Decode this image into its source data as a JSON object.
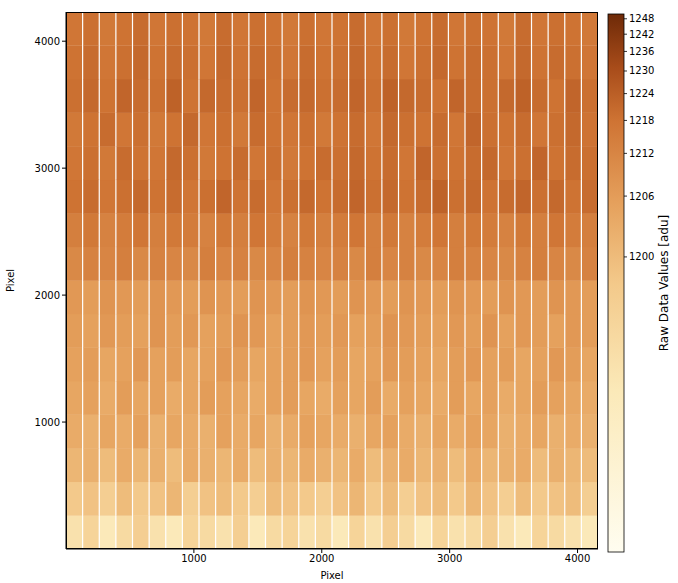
{
  "chart_data": {
    "type": "heatmap",
    "x_label": "Pixel",
    "y_label": "Pixel",
    "xlim": [
      0,
      4160
    ],
    "ylim": [
      0,
      4230
    ],
    "xticks": [
      1000,
      2000,
      3000,
      4000
    ],
    "yticks": [
      1000,
      2000,
      3000,
      4000
    ],
    "x": [
      65,
      195,
      325,
      455,
      585,
      715,
      845,
      975,
      1105,
      1235,
      1365,
      1495,
      1625,
      1755,
      1885,
      2015,
      2145,
      2275,
      2405,
      2535,
      2665,
      2795,
      2925,
      3055,
      3185,
      3315,
      3445,
      3575,
      3705,
      3835,
      3965,
      4095
    ],
    "y": [
      132,
      396,
      661,
      925,
      1190,
      1454,
      1718,
      1983,
      2247,
      2512,
      2776,
      3040,
      3305,
      3569,
      3833,
      4098
    ],
    "cells": [
      [
        1194,
        1196,
        1193,
        1195,
        1197,
        1194,
        1193,
        1196,
        1195,
        1194,
        1197,
        1193,
        1195,
        1196,
        1194,
        1195,
        1193,
        1196,
        1194,
        1197,
        1195,
        1193,
        1196,
        1194,
        1195,
        1197,
        1194,
        1193,
        1196,
        1195,
        1194,
        1193
      ],
      [
        1198,
        1199,
        1197,
        1200,
        1198,
        1199,
        1201,
        1197,
        1199,
        1200,
        1198,
        1197,
        1200,
        1199,
        1198,
        1197,
        1199,
        1201,
        1198,
        1200,
        1197,
        1199,
        1200,
        1198,
        1201,
        1199,
        1197,
        1200,
        1198,
        1199,
        1200,
        1197
      ],
      [
        1201,
        1202,
        1200,
        1203,
        1201,
        1202,
        1200,
        1203,
        1202,
        1201,
        1203,
        1200,
        1202,
        1201,
        1203,
        1202,
        1201,
        1203,
        1200,
        1202,
        1203,
        1201,
        1202,
        1200,
        1203,
        1201,
        1202,
        1203,
        1200,
        1202,
        1201,
        1200
      ],
      [
        1203,
        1202,
        1204,
        1203,
        1205,
        1202,
        1204,
        1203,
        1202,
        1205,
        1203,
        1204,
        1202,
        1203,
        1205,
        1204,
        1203,
        1202,
        1204,
        1205,
        1203,
        1202,
        1204,
        1203,
        1205,
        1204,
        1202,
        1203,
        1204,
        1202,
        1203,
        1202
      ],
      [
        1204,
        1205,
        1203,
        1206,
        1204,
        1205,
        1203,
        1204,
        1206,
        1205,
        1204,
        1203,
        1205,
        1206,
        1204,
        1203,
        1205,
        1204,
        1206,
        1203,
        1205,
        1204,
        1203,
        1206,
        1204,
        1205,
        1203,
        1204,
        1206,
        1205,
        1204,
        1203
      ],
      [
        1205,
        1206,
        1204,
        1205,
        1207,
        1205,
        1206,
        1204,
        1205,
        1207,
        1206,
        1204,
        1205,
        1206,
        1207,
        1205,
        1206,
        1204,
        1205,
        1207,
        1206,
        1205,
        1204,
        1206,
        1207,
        1205,
        1206,
        1204,
        1205,
        1207,
        1206,
        1204
      ],
      [
        1206,
        1205,
        1207,
        1206,
        1205,
        1208,
        1206,
        1207,
        1205,
        1206,
        1208,
        1207,
        1205,
        1206,
        1207,
        1206,
        1207,
        1205,
        1206,
        1208,
        1207,
        1206,
        1205,
        1207,
        1206,
        1208,
        1205,
        1207,
        1206,
        1205,
        1207,
        1206
      ],
      [
        1207,
        1206,
        1208,
        1207,
        1206,
        1208,
        1207,
        1206,
        1208,
        1207,
        1206,
        1208,
        1207,
        1206,
        1208,
        1207,
        1206,
        1208,
        1207,
        1206,
        1208,
        1207,
        1206,
        1208,
        1207,
        1206,
        1208,
        1207,
        1206,
        1208,
        1207,
        1206
      ],
      [
        1211,
        1213,
        1212,
        1214,
        1211,
        1213,
        1212,
        1211,
        1214,
        1212,
        1213,
        1211,
        1212,
        1214,
        1213,
        1212,
        1213,
        1211,
        1214,
        1212,
        1213,
        1211,
        1212,
        1214,
        1213,
        1212,
        1211,
        1213,
        1214,
        1212,
        1211,
        1213
      ],
      [
        1214,
        1216,
        1213,
        1215,
        1217,
        1214,
        1216,
        1215,
        1213,
        1216,
        1214,
        1217,
        1215,
        1213,
        1216,
        1214,
        1215,
        1217,
        1214,
        1216,
        1213,
        1215,
        1217,
        1214,
        1216,
        1215,
        1213,
        1216,
        1214,
        1217,
        1215,
        1214
      ],
      [
        1218,
        1220,
        1217,
        1219,
        1221,
        1218,
        1220,
        1217,
        1219,
        1222,
        1218,
        1220,
        1217,
        1219,
        1221,
        1218,
        1220,
        1222,
        1219,
        1221,
        1218,
        1220,
        1223,
        1219,
        1221,
        1218,
        1220,
        1222,
        1219,
        1221,
        1218,
        1220
      ],
      [
        1217,
        1219,
        1216,
        1220,
        1218,
        1217,
        1221,
        1219,
        1216,
        1218,
        1220,
        1217,
        1219,
        1216,
        1218,
        1220,
        1219,
        1221,
        1218,
        1220,
        1217,
        1222,
        1219,
        1218,
        1220,
        1221,
        1217,
        1219,
        1222,
        1218,
        1220,
        1219
      ],
      [
        1216,
        1218,
        1220,
        1217,
        1219,
        1216,
        1218,
        1221,
        1217,
        1219,
        1216,
        1220,
        1218,
        1217,
        1219,
        1216,
        1218,
        1220,
        1217,
        1221,
        1219,
        1218,
        1220,
        1217,
        1222,
        1219,
        1218,
        1220,
        1217,
        1219,
        1221,
        1218
      ],
      [
        1219,
        1221,
        1218,
        1222,
        1220,
        1219,
        1223,
        1218,
        1221,
        1220,
        1219,
        1222,
        1218,
        1220,
        1221,
        1219,
        1220,
        1222,
        1219,
        1223,
        1221,
        1220,
        1218,
        1222,
        1220,
        1219,
        1221,
        1223,
        1220,
        1218,
        1222,
        1219
      ],
      [
        1218,
        1220,
        1217,
        1219,
        1221,
        1218,
        1220,
        1219,
        1217,
        1221,
        1218,
        1220,
        1219,
        1217,
        1220,
        1218,
        1219,
        1221,
        1218,
        1220,
        1217,
        1219,
        1221,
        1218,
        1220,
        1219,
        1217,
        1221,
        1218,
        1220,
        1219,
        1217
      ],
      [
        1217,
        1219,
        1216,
        1218,
        1220,
        1217,
        1219,
        1218,
        1216,
        1220,
        1217,
        1219,
        1218,
        1216,
        1219,
        1217,
        1218,
        1220,
        1217,
        1219,
        1216,
        1218,
        1220,
        1217,
        1219,
        1218,
        1216,
        1220,
        1217,
        1219,
        1218,
        1216
      ]
    ],
    "colorbar": {
      "label": "Raw Data Values [adu]",
      "range": [
        1190,
        1250
      ],
      "ticks": [
        1200,
        1206,
        1212,
        1218,
        1224,
        1230,
        1236,
        1242,
        1248
      ]
    }
  }
}
